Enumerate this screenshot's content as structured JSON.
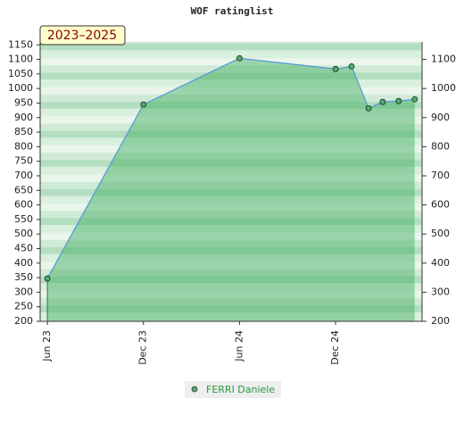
{
  "chart_data": {
    "type": "line",
    "title": "WOF ratinglist",
    "badge": "2023–2025",
    "x": [
      5,
      11,
      17,
      23,
      24,
      25.06,
      25.94,
      26.94,
      27.94
    ],
    "xlim": [
      4.55,
      28.4
    ],
    "xticks": [
      {
        "value": 5,
        "label": "Jun 23"
      },
      {
        "value": 11,
        "label": "Dec 23"
      },
      {
        "value": 17,
        "label": "Jun 24"
      },
      {
        "value": 23,
        "label": "Dec 24"
      }
    ],
    "series": [
      {
        "name": "FERRI Daniele",
        "color": "#5b9bd5",
        "values": [
          347,
          945,
          1104,
          1067,
          1076,
          932,
          954,
          957,
          963
        ]
      }
    ],
    "ylim": [
      200,
      1160
    ],
    "yticks": [
      200,
      250,
      300,
      350,
      400,
      450,
      500,
      550,
      600,
      650,
      700,
      750,
      800,
      850,
      900,
      950,
      1000,
      1050,
      1100,
      1150
    ],
    "y2lim": [
      200,
      1160
    ],
    "y2ticks": [
      200,
      300,
      400,
      500,
      600,
      700,
      800,
      900,
      1000,
      1100
    ]
  }
}
